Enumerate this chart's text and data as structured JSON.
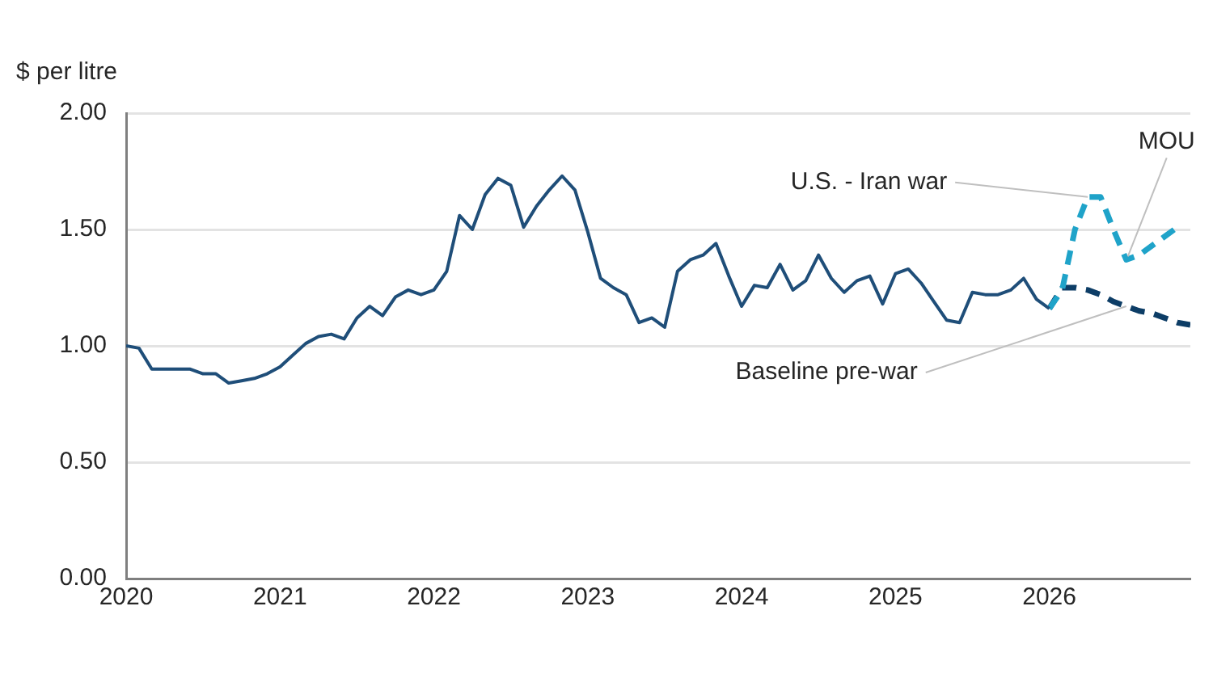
{
  "chart_data": {
    "type": "line",
    "ylabel": "$ per litre",
    "x": [
      "2020-01",
      "2020-02",
      "2020-03",
      "2020-04",
      "2020-05",
      "2020-06",
      "2020-07",
      "2020-08",
      "2020-09",
      "2020-10",
      "2020-11",
      "2020-12",
      "2021-01",
      "2021-02",
      "2021-03",
      "2021-04",
      "2021-05",
      "2021-06",
      "2021-07",
      "2021-08",
      "2021-09",
      "2021-10",
      "2021-11",
      "2021-12",
      "2022-01",
      "2022-02",
      "2022-03",
      "2022-04",
      "2022-05",
      "2022-06",
      "2022-07",
      "2022-08",
      "2022-09",
      "2022-10",
      "2022-11",
      "2022-12",
      "2023-01",
      "2023-02",
      "2023-03",
      "2023-04",
      "2023-05",
      "2023-06",
      "2023-07",
      "2023-08",
      "2023-09",
      "2023-10",
      "2023-11",
      "2023-12",
      "2024-01",
      "2024-02",
      "2024-03",
      "2024-04",
      "2024-05",
      "2024-06",
      "2024-07",
      "2024-08",
      "2024-09",
      "2024-10",
      "2024-11",
      "2024-12",
      "2025-01",
      "2025-02",
      "2025-03",
      "2025-04",
      "2025-05",
      "2025-06",
      "2025-07",
      "2025-08",
      "2025-09",
      "2025-10",
      "2025-11",
      "2025-12",
      "2026-01"
    ],
    "series": [
      {
        "color": "#1f4e79",
        "line_style": "solid",
        "values": [
          1.0,
          0.99,
          0.9,
          0.9,
          0.9,
          0.9,
          0.88,
          0.88,
          0.84,
          0.85,
          0.86,
          0.88,
          0.91,
          0.96,
          1.01,
          1.04,
          1.05,
          1.03,
          1.12,
          1.17,
          1.13,
          1.21,
          1.24,
          1.22,
          1.24,
          1.32,
          1.56,
          1.5,
          1.65,
          1.72,
          1.69,
          1.51,
          1.6,
          1.67,
          1.73,
          1.67,
          1.49,
          1.29,
          1.25,
          1.22,
          1.1,
          1.12,
          1.08,
          1.32,
          1.37,
          1.39,
          1.44,
          1.3,
          1.17,
          1.26,
          1.25,
          1.35,
          1.24,
          1.28,
          1.39,
          1.29,
          1.23,
          1.28,
          1.3,
          1.18,
          1.31,
          1.33,
          1.27,
          1.19,
          1.11,
          1.1,
          1.23,
          1.22,
          1.22,
          1.24,
          1.29,
          1.2,
          1.16
        ]
      },
      {
        "name": "U.S. - Iran war",
        "color": "#1fa3c9",
        "line_style": "dashed",
        "x": [
          "2026-01",
          "2026-02",
          "2026-03",
          "2026-04",
          "2026-05",
          "2026-06",
          "2026-07",
          "2026-08",
          "2026-09",
          "2026-10",
          "2026-11"
        ],
        "values": [
          1.16,
          1.24,
          1.5,
          1.64,
          1.64,
          1.5,
          1.37,
          1.39,
          1.43,
          1.47,
          1.51
        ]
      },
      {
        "name": "Baseline pre-war",
        "color": "#0d3d66",
        "line_style": "dashed",
        "x": [
          "2026-01",
          "2026-02",
          "2026-03",
          "2026-04",
          "2026-05",
          "2026-06",
          "2026-07",
          "2026-08",
          "2026-09",
          "2026-10",
          "2026-11",
          "2026-12"
        ],
        "values": [
          1.16,
          1.25,
          1.25,
          1.24,
          1.22,
          1.19,
          1.17,
          1.15,
          1.14,
          1.12,
          1.1,
          1.09
        ]
      }
    ],
    "annotations": [
      {
        "text": "MOU",
        "x": "2026-07",
        "y": 1.37
      }
    ],
    "xlim": [
      "2020-01",
      "2026-12"
    ],
    "xticks": [
      "2020",
      "2021",
      "2022",
      "2023",
      "2024",
      "2025",
      "2026"
    ],
    "ylim": [
      0,
      2
    ],
    "yticks": [
      {
        "value": 0,
        "label": "0.00"
      },
      {
        "value": 0.5,
        "label": "0.50"
      },
      {
        "value": 1,
        "label": "1.00"
      },
      {
        "value": 1.5,
        "label": "1.50"
      },
      {
        "value": 2,
        "label": "2.00"
      }
    ],
    "grid": "y",
    "legend": false,
    "marker": "none"
  }
}
